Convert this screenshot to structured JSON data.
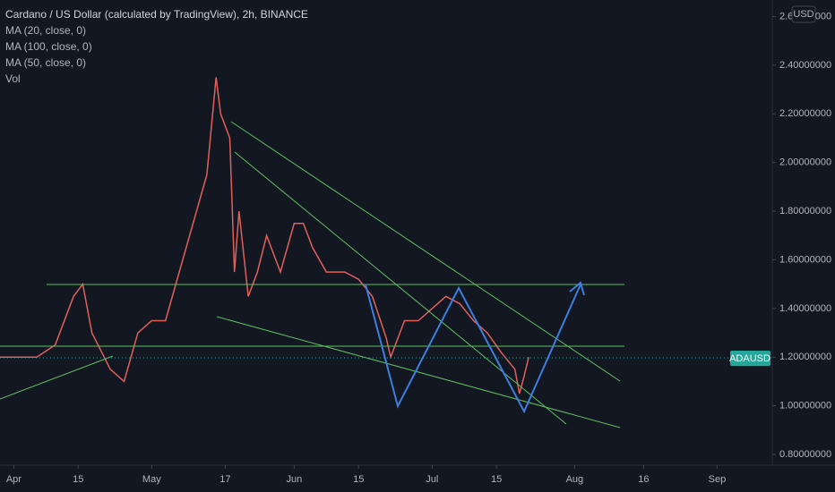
{
  "chart_data": {
    "type": "line",
    "title": "Cardano / US Dollar (calculated by TradingView), 2h, BINANCE",
    "indicators": [
      "MA (20, close, 0)",
      "MA (100, close, 0)",
      "MA (50, close, 0)",
      "Vol"
    ],
    "currency": "USD",
    "symbol": "ADAUSD",
    "x": [
      "03-29",
      "04-02",
      "04-06",
      "04-10",
      "04-14",
      "04-16",
      "04-18",
      "04-22",
      "04-25",
      "04-28",
      "05-01",
      "05-04",
      "05-07",
      "05-10",
      "05-13",
      "05-15",
      "05-16",
      "05-18",
      "05-19",
      "05-20",
      "05-22",
      "05-24",
      "05-26",
      "05-29",
      "06-01",
      "06-03",
      "06-05",
      "06-08",
      "06-12",
      "06-15",
      "06-18",
      "06-21",
      "06-22",
      "06-25",
      "06-28",
      "07-01",
      "07-04",
      "07-07",
      "07-10",
      "07-13",
      "07-16",
      "07-19",
      "07-20",
      "07-21",
      "07-22"
    ],
    "series": [
      {
        "name": "ADAUSD",
        "color": "#e0605a",
        "values": [
          1.2,
          1.2,
          1.2,
          1.25,
          1.45,
          1.5,
          1.3,
          1.15,
          1.1,
          1.3,
          1.35,
          1.35,
          1.55,
          1.75,
          1.95,
          2.35,
          2.2,
          2.1,
          1.55,
          1.8,
          1.45,
          1.55,
          1.7,
          1.55,
          1.75,
          1.75,
          1.65,
          1.55,
          1.55,
          1.52,
          1.45,
          1.28,
          1.2,
          1.35,
          1.35,
          1.4,
          1.45,
          1.42,
          1.35,
          1.3,
          1.22,
          1.15,
          1.05,
          1.12,
          1.2
        ]
      }
    ],
    "xlim": [
      "03-29",
      "09-13"
    ],
    "xticks": [
      {
        "value": "04-01",
        "label": "Apr"
      },
      {
        "value": "04-15",
        "label": "15"
      },
      {
        "value": "05-01",
        "label": "May"
      },
      {
        "value": "05-17",
        "label": "17"
      },
      {
        "value": "06-01",
        "label": "Jun"
      },
      {
        "value": "06-15",
        "label": "15"
      },
      {
        "value": "07-01",
        "label": "Jul"
      },
      {
        "value": "07-15",
        "label": "15"
      },
      {
        "value": "08-01",
        "label": "Aug"
      },
      {
        "value": "08-16",
        "label": "16"
      },
      {
        "value": "09-01",
        "label": "Sep"
      }
    ],
    "ylim": [
      0.756,
      2.668
    ],
    "yticks": [
      {
        "value": 0.8,
        "label": "0.80000000"
      },
      {
        "value": 1.0,
        "label": "1.00000000"
      },
      {
        "value": 1.2,
        "label": "1.20000000"
      },
      {
        "value": 1.4,
        "label": "1.40000000"
      },
      {
        "value": 1.6,
        "label": "1.60000000"
      },
      {
        "value": 1.8,
        "label": "1.80000000"
      },
      {
        "value": 2.0,
        "label": "2.00000000"
      },
      {
        "value": 2.2,
        "label": "2.20000000"
      },
      {
        "value": 2.4,
        "label": "2.40000000"
      },
      {
        "value": 2.6,
        "label": "2.60000000"
      }
    ]
  }
}
